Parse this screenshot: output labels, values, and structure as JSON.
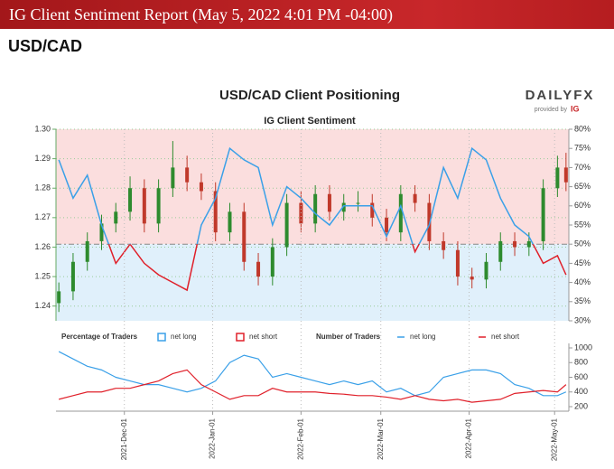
{
  "header": {
    "title": "IG Client Sentiment Report (May 5, 2022 4:01 PM -04:00)",
    "pair": "USD/CAD"
  },
  "brand": {
    "name": "DAILYFX",
    "provided": "provided by",
    "ig": "IG"
  },
  "chart_data": [
    {
      "type": "candlestick",
      "title": "USD/CAD Client Positioning",
      "subtitle": "IG Client Sentiment",
      "x": [
        "2021-11-08",
        "2021-11-13",
        "2021-11-18",
        "2021-11-23",
        "2021-11-28",
        "2021-12-03",
        "2021-12-08",
        "2021-12-13",
        "2021-12-18",
        "2021-12-23",
        "2021-12-28",
        "2022-01-02",
        "2022-01-07",
        "2022-01-12",
        "2022-01-17",
        "2022-01-22",
        "2022-01-27",
        "2022-02-01",
        "2022-02-06",
        "2022-02-11",
        "2022-02-16",
        "2022-02-21",
        "2022-02-26",
        "2022-03-03",
        "2022-03-08",
        "2022-03-13",
        "2022-03-18",
        "2022-03-23",
        "2022-03-28",
        "2022-04-02",
        "2022-04-07",
        "2022-04-12",
        "2022-04-17",
        "2022-04-22",
        "2022-04-27",
        "2022-05-02",
        "2022-05-05"
      ],
      "open": [
        1.241,
        1.245,
        1.255,
        1.262,
        1.268,
        1.272,
        1.28,
        1.268,
        1.28,
        1.287,
        1.282,
        1.279,
        1.265,
        1.272,
        1.255,
        1.25,
        1.26,
        1.275,
        1.268,
        1.278,
        1.272,
        1.275,
        1.275,
        1.27,
        1.265,
        1.278,
        1.275,
        1.262,
        1.259,
        1.25,
        1.249,
        1.255,
        1.262,
        1.26,
        1.262,
        1.28,
        1.287
      ],
      "high": [
        1.248,
        1.258,
        1.265,
        1.271,
        1.275,
        1.284,
        1.283,
        1.283,
        1.296,
        1.291,
        1.285,
        1.282,
        1.275,
        1.275,
        1.258,
        1.263,
        1.278,
        1.279,
        1.281,
        1.281,
        1.278,
        1.279,
        1.278,
        1.273,
        1.281,
        1.281,
        1.278,
        1.265,
        1.262,
        1.253,
        1.258,
        1.265,
        1.265,
        1.265,
        1.283,
        1.291,
        1.292
      ],
      "low": [
        1.238,
        1.242,
        1.252,
        1.259,
        1.265,
        1.269,
        1.265,
        1.265,
        1.277,
        1.279,
        1.276,
        1.262,
        1.262,
        1.252,
        1.247,
        1.247,
        1.257,
        1.265,
        1.265,
        1.269,
        1.269,
        1.272,
        1.267,
        1.262,
        1.262,
        1.272,
        1.259,
        1.256,
        1.247,
        1.246,
        1.246,
        1.252,
        1.257,
        1.257,
        1.259,
        1.277,
        1.279
      ],
      "close": [
        1.245,
        1.255,
        1.262,
        1.268,
        1.272,
        1.28,
        1.268,
        1.28,
        1.287,
        1.282,
        1.279,
        1.265,
        1.272,
        1.255,
        1.25,
        1.26,
        1.275,
        1.268,
        1.278,
        1.272,
        1.275,
        1.275,
        1.27,
        1.265,
        1.278,
        1.275,
        1.262,
        1.259,
        1.25,
        1.249,
        1.255,
        1.262,
        1.26,
        1.262,
        1.28,
        1.287,
        1.282
      ],
      "up_color": "#2e8b2e",
      "down_color": "#c0392b",
      "ylim": [
        1.235,
        1.3
      ],
      "yticks": [
        {
          "value": 1.24,
          "label": "1.24"
        },
        {
          "value": 1.25,
          "label": "1.25"
        },
        {
          "value": 1.26,
          "label": "1.26"
        },
        {
          "value": 1.27,
          "label": "1.27"
        },
        {
          "value": 1.28,
          "label": "1.28"
        },
        {
          "value": 1.29,
          "label": "1.29"
        },
        {
          "value": 1.3,
          "label": "1.30"
        }
      ],
      "y2lim": [
        30,
        80
      ],
      "y2ticks": [
        {
          "value": 30,
          "label": "30%"
        },
        {
          "value": 35,
          "label": "35%"
        },
        {
          "value": 40,
          "label": "40%"
        },
        {
          "value": 45,
          "label": "45%"
        },
        {
          "value": 50,
          "label": "50%"
        },
        {
          "value": 55,
          "label": "55%"
        },
        {
          "value": 60,
          "label": "60%"
        },
        {
          "value": 65,
          "label": "65%"
        },
        {
          "value": 70,
          "label": "70%"
        },
        {
          "value": 75,
          "label": "75%"
        },
        {
          "value": 80,
          "label": "80%"
        }
      ],
      "threshold": 50,
      "series": [
        {
          "name": "net long",
          "color": "#3aa0e8",
          "below_color": "#e0202a",
          "axis": "y2",
          "values": [
            72,
            62,
            68,
            55,
            45,
            50,
            45,
            42,
            40,
            38,
            55,
            62,
            75,
            72,
            70,
            55,
            65,
            62,
            58,
            55,
            60,
            60,
            60,
            52,
            60,
            48,
            55,
            70,
            62,
            75,
            72,
            62,
            55,
            52,
            45,
            47,
            42
          ]
        }
      ],
      "shading": {
        "above": "#fbdede",
        "below": "#e0f0fb"
      },
      "legend_title": "Percentage of Traders",
      "legend": [
        {
          "name": "net long",
          "color": "#3aa0e8"
        },
        {
          "name": "net short",
          "color": "#e0202a"
        }
      ]
    },
    {
      "type": "line",
      "legend_title": "Number of Traders",
      "x": [
        "2021-11-08",
        "2021-11-13",
        "2021-11-18",
        "2021-11-23",
        "2021-11-28",
        "2021-12-03",
        "2021-12-08",
        "2021-12-13",
        "2021-12-18",
        "2021-12-23",
        "2021-12-28",
        "2022-01-02",
        "2022-01-07",
        "2022-01-12",
        "2022-01-17",
        "2022-01-22",
        "2022-01-27",
        "2022-02-01",
        "2022-02-06",
        "2022-02-11",
        "2022-02-16",
        "2022-02-21",
        "2022-02-26",
        "2022-03-03",
        "2022-03-08",
        "2022-03-13",
        "2022-03-18",
        "2022-03-23",
        "2022-03-28",
        "2022-04-02",
        "2022-04-07",
        "2022-04-12",
        "2022-04-17",
        "2022-04-22",
        "2022-04-27",
        "2022-05-02",
        "2022-05-05"
      ],
      "series": [
        {
          "name": "net long",
          "color": "#3aa0e8",
          "values": [
            950,
            850,
            750,
            700,
            600,
            550,
            500,
            500,
            450,
            400,
            450,
            550,
            800,
            900,
            850,
            600,
            650,
            600,
            550,
            500,
            550,
            500,
            550,
            400,
            450,
            350,
            400,
            600,
            650,
            700,
            700,
            650,
            500,
            450,
            350,
            350,
            400
          ]
        },
        {
          "name": "net short",
          "color": "#e0202a",
          "values": [
            300,
            350,
            400,
            400,
            450,
            450,
            500,
            550,
            650,
            700,
            500,
            400,
            300,
            350,
            350,
            450,
            400,
            400,
            400,
            380,
            370,
            350,
            350,
            330,
            300,
            350,
            300,
            280,
            300,
            260,
            280,
            300,
            380,
            400,
            420,
            400,
            500
          ]
        }
      ],
      "ylim": [
        200,
        1000
      ],
      "yticks": [
        200,
        400,
        600,
        800,
        1000
      ],
      "xticks": [
        {
          "value": "2021-12-01",
          "label": "2021-Dec-01"
        },
        {
          "value": "2022-01-01",
          "label": "2022-Jan-01"
        },
        {
          "value": "2022-02-01",
          "label": "2022-Feb-01"
        },
        {
          "value": "2022-03-01",
          "label": "2022-Mar-01"
        },
        {
          "value": "2022-04-01",
          "label": "2022-Apr-01"
        },
        {
          "value": "2022-05-01",
          "label": "2022-May-01"
        }
      ]
    }
  ]
}
